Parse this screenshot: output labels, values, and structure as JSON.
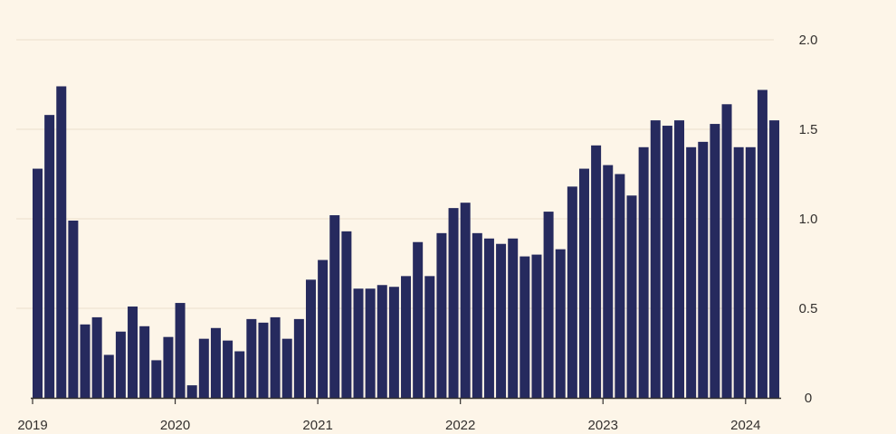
{
  "colors": {
    "background": "#fdf5e8",
    "bar": "#262a5e",
    "grid": "#f1e6d6",
    "axis": "#33302e"
  },
  "chart_data": {
    "type": "bar",
    "x_start": "2019-01",
    "x_frequency": "monthly",
    "ylim": [
      0,
      2.0
    ],
    "yticks": [
      "0",
      "0.5",
      "1.0",
      "1.5",
      "2.0"
    ],
    "ytick_values": [
      0,
      0.5,
      1.0,
      1.5,
      2.0
    ],
    "y_axis_position": "right",
    "xticks": [
      "2019",
      "2020",
      "2021",
      "2022",
      "2023",
      "2024"
    ],
    "xtick_month_index": [
      0,
      12,
      24,
      36,
      48,
      60
    ],
    "grid": "horizontal",
    "title": "",
    "xlabel": "",
    "ylabel": "",
    "values": [
      1.28,
      1.58,
      1.74,
      0.99,
      0.41,
      0.45,
      0.24,
      0.37,
      0.51,
      0.4,
      0.21,
      0.34,
      0.53,
      0.07,
      0.33,
      0.39,
      0.32,
      0.26,
      0.44,
      0.42,
      0.45,
      0.33,
      0.44,
      0.66,
      0.77,
      1.02,
      0.93,
      0.61,
      0.61,
      0.63,
      0.62,
      0.68,
      0.87,
      0.68,
      0.92,
      1.06,
      1.09,
      0.92,
      0.89,
      0.86,
      0.89,
      0.79,
      0.8,
      1.04,
      0.83,
      1.18,
      1.28,
      1.41,
      1.3,
      1.25,
      1.13,
      1.4,
      1.55,
      1.52,
      1.55,
      1.4,
      1.43,
      1.53,
      1.64,
      1.4,
      1.4,
      1.72,
      1.55
    ]
  }
}
